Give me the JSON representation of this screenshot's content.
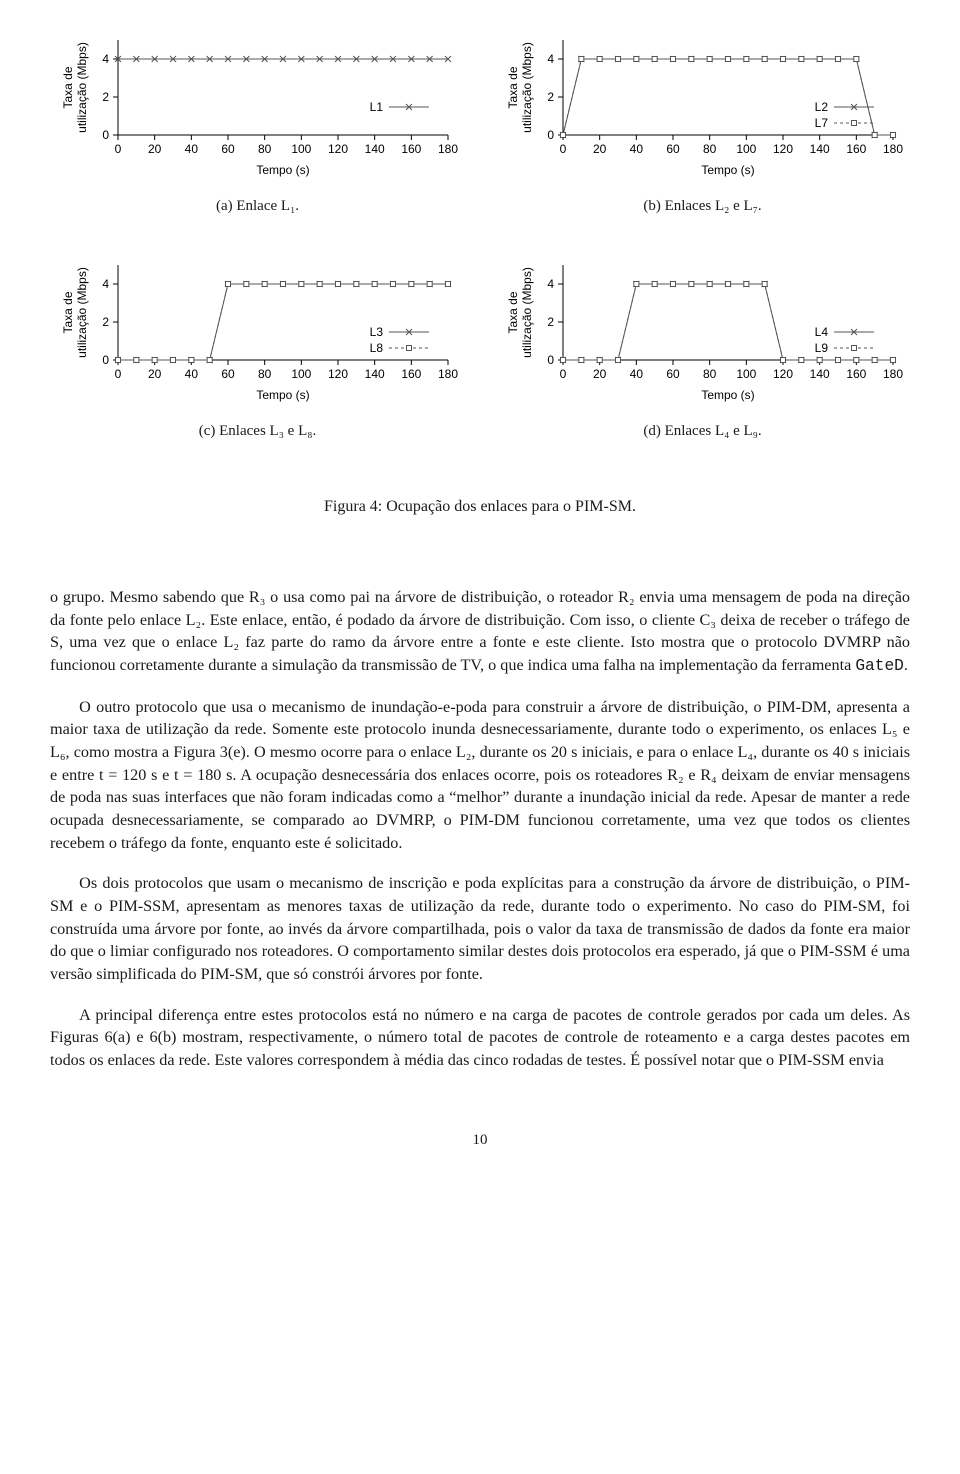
{
  "figure": {
    "caption": "Figura 4: Ocupação dos enlaces para o PIM-SM.",
    "font_family": "Times New Roman",
    "chart_font_family": "Arial",
    "tick_fontsize": 12,
    "axis_label_fontsize": 12,
    "legend_fontsize": 12,
    "line_color": "#555555",
    "marker_fill": "#ffffff",
    "marker_stroke": "#555555",
    "axis_color": "#000000",
    "line_width": 1,
    "xlim": [
      0,
      180
    ],
    "ylim": [
      0,
      5
    ],
    "xtick_step": 20,
    "ytick_values": [
      0,
      2,
      4
    ],
    "xlabel": "Tempo (s)",
    "ylabel": "Taxa de\nutilização (Mbps)",
    "panels": [
      {
        "id": "a",
        "subcaption": "(a) Enlace L₁.",
        "series": [
          {
            "label": "L1",
            "marker": "x",
            "x": [
              0,
              10,
              20,
              30,
              40,
              50,
              60,
              70,
              80,
              90,
              100,
              110,
              120,
              130,
              140,
              150,
              160,
              170,
              180
            ],
            "y": [
              4,
              4,
              4,
              4,
              4,
              4,
              4,
              4,
              4,
              4,
              4,
              4,
              4,
              4,
              4,
              4,
              4,
              4,
              4
            ]
          }
        ]
      },
      {
        "id": "b",
        "subcaption": "(b) Enlaces L₂ e L₇.",
        "series": [
          {
            "label": "L2",
            "marker": "x",
            "x": [
              0,
              10,
              20,
              30,
              40,
              50,
              60,
              70,
              80,
              90,
              100,
              110,
              120,
              130,
              140,
              150,
              160,
              170,
              180
            ],
            "y": [
              0,
              4,
              4,
              4,
              4,
              4,
              4,
              4,
              4,
              4,
              4,
              4,
              4,
              4,
              4,
              4,
              4,
              0,
              0
            ]
          },
          {
            "label": "L7",
            "marker": "square",
            "x": [
              0,
              10,
              20,
              30,
              40,
              50,
              60,
              70,
              80,
              90,
              100,
              110,
              120,
              130,
              140,
              150,
              160,
              170,
              180
            ],
            "y": [
              0,
              4,
              4,
              4,
              4,
              4,
              4,
              4,
              4,
              4,
              4,
              4,
              4,
              4,
              4,
              4,
              4,
              0,
              0
            ]
          }
        ]
      },
      {
        "id": "c",
        "subcaption": "(c) Enlaces L₃ e L₈.",
        "series": [
          {
            "label": "L3",
            "marker": "x",
            "x": [
              0,
              10,
              20,
              30,
              40,
              50,
              60,
              70,
              80,
              90,
              100,
              110,
              120,
              130,
              140,
              150,
              160,
              170,
              180
            ],
            "y": [
              0,
              0,
              0,
              0,
              0,
              0,
              4,
              4,
              4,
              4,
              4,
              4,
              4,
              4,
              4,
              4,
              4,
              4,
              4
            ]
          },
          {
            "label": "L8",
            "marker": "square",
            "x": [
              0,
              10,
              20,
              30,
              40,
              50,
              60,
              70,
              80,
              90,
              100,
              110,
              120,
              130,
              140,
              150,
              160,
              170,
              180
            ],
            "y": [
              0,
              0,
              0,
              0,
              0,
              0,
              4,
              4,
              4,
              4,
              4,
              4,
              4,
              4,
              4,
              4,
              4,
              4,
              4
            ]
          }
        ]
      },
      {
        "id": "d",
        "subcaption": "(d) Enlaces L₄ e L₉.",
        "series": [
          {
            "label": "L4",
            "marker": "x",
            "x": [
              0,
              10,
              20,
              30,
              40,
              50,
              60,
              70,
              80,
              90,
              100,
              110,
              120,
              130,
              140,
              150,
              160,
              170,
              180
            ],
            "y": [
              0,
              0,
              0,
              0,
              4,
              4,
              4,
              4,
              4,
              4,
              4,
              4,
              0,
              0,
              0,
              0,
              0,
              0,
              0
            ]
          },
          {
            "label": "L9",
            "marker": "square",
            "x": [
              0,
              10,
              20,
              30,
              40,
              50,
              60,
              70,
              80,
              90,
              100,
              110,
              120,
              130,
              140,
              150,
              160,
              170,
              180
            ],
            "y": [
              0,
              0,
              0,
              0,
              4,
              4,
              4,
              4,
              4,
              4,
              4,
              4,
              0,
              0,
              0,
              0,
              0,
              0,
              0
            ]
          }
        ]
      }
    ]
  },
  "paragraphs": {
    "p1": "o grupo. Mesmo sabendo que R₃ o usa como pai na árvore de distribuição, o roteador R₂ envia uma mensagem de poda na direção da fonte pelo enlace L₂. Este enlace, então, é podado da árvore de distribuição. Com isso, o cliente C₃ deixa de receber o tráfego de S, uma vez que o enlace L₂ faz parte do ramo da árvore entre a fonte e este cliente. Isto mostra que o protocolo DVMRP não funcionou corretamente durante a simulação da transmissão de TV, o que indica uma falha na implementação da ferramenta ",
    "p1_code": "GateD",
    "p1_tail": ".",
    "p2": "O outro protocolo que usa o mecanismo de inundação-e-poda para construir a árvore de distribuição, o PIM-DM, apresenta a maior taxa de utilização da rede. Somente este protocolo inunda desnecessariamente, durante todo o experimento, os enlaces L₅ e L₆, como mostra a Figura 3(e). O mesmo ocorre para o enlace L₂, durante os 20 s iniciais, e para o enlace L₄, durante os 40 s iniciais e entre t = 120 s e t = 180 s. A ocupação desnecessária dos enlaces ocorre, pois os roteadores R₂ e R₄ deixam de enviar mensagens de poda nas suas interfaces que não foram indicadas como a “melhor” durante a inundação inicial da rede. Apesar de manter a rede ocupada desnecessariamente, se comparado ao DVMRP, o PIM-DM funcionou corretamente, uma vez que todos os clientes recebem o tráfego da fonte, enquanto este é solicitado.",
    "p3": "Os dois protocolos que usam o mecanismo de inscrição e poda explícitas para a construção da árvore de distribuição, o PIM-SM e o PIM-SSM, apresentam as menores taxas de utilização da rede, durante todo o experimento. No caso do PIM-SM, foi construída uma árvore por fonte, ao invés da árvore compartilhada, pois o valor da taxa de transmissão de dados da fonte era maior do que o limiar configurado nos roteadores. O comportamento similar destes dois protocolos era esperado, já que o PIM-SSM é uma versão simplificada do PIM-SM, que só constrói árvores por fonte.",
    "p4": "A principal diferença entre estes protocolos está no número e na carga de pacotes de controle gerados por cada um deles. As Figuras 6(a) e 6(b) mostram, respectivamente, o número total de pacotes de controle de roteamento e a carga destes pacotes em todos os enlaces da rede. Este valores correspondem à média das cinco rodadas de testes. É possível notar que o PIM-SSM envia"
  },
  "page_number": "10"
}
